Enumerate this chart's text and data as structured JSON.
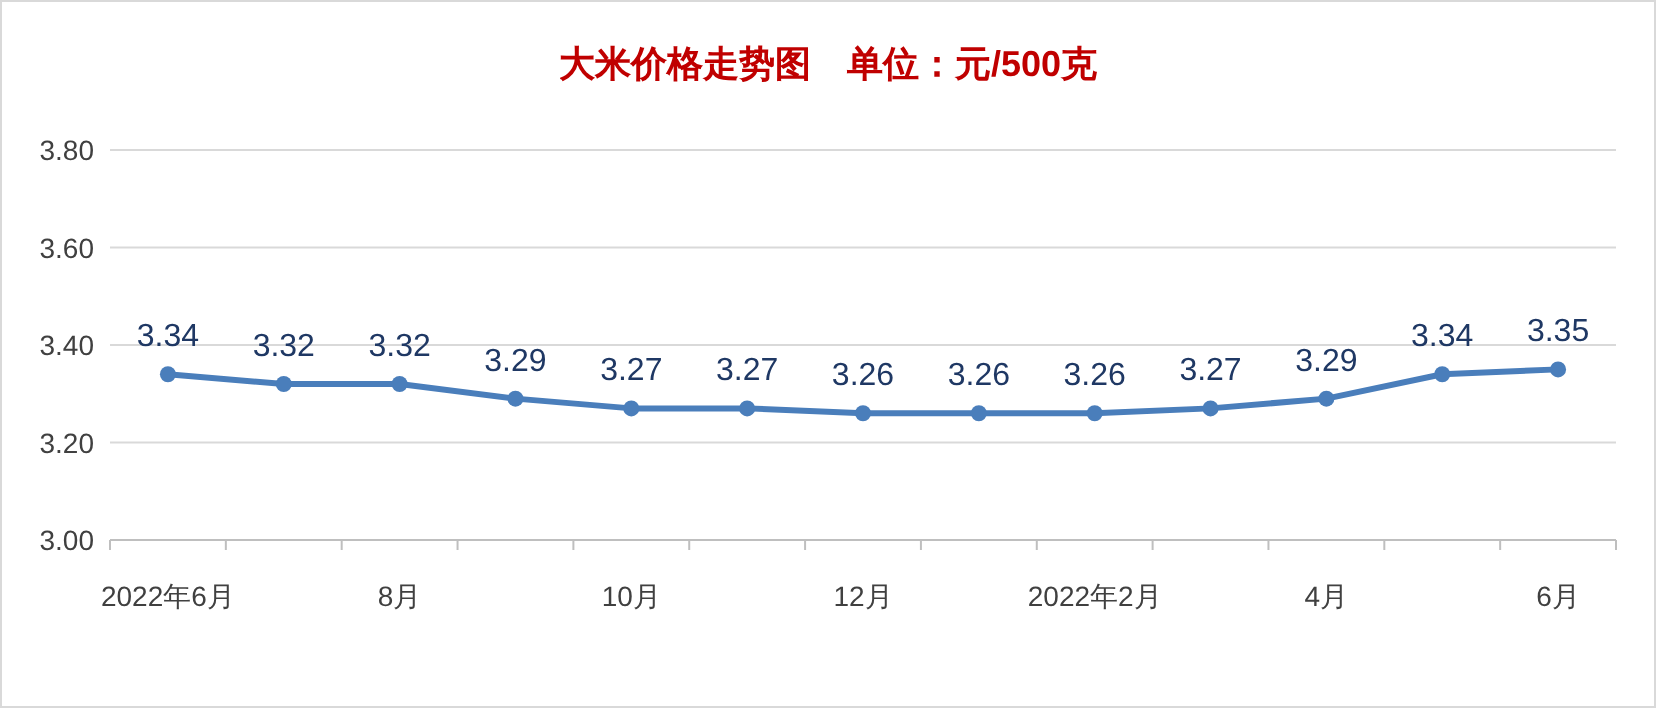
{
  "chart_data": {
    "type": "line",
    "title": "大米价格走势图　单位：元/500克",
    "categories": [
      "2022年6月",
      null,
      "8月",
      null,
      "10月",
      null,
      "12月",
      null,
      "2022年2月",
      null,
      "4月",
      null,
      "6月"
    ],
    "series": [
      {
        "color": "#4a7ebb",
        "values": [
          3.34,
          3.32,
          3.32,
          3.29,
          3.27,
          3.27,
          3.26,
          3.26,
          3.26,
          3.27,
          3.29,
          3.34,
          3.35
        ]
      }
    ],
    "ylim": [
      3.0,
      3.8
    ],
    "yticks": [
      {
        "value": 3.0,
        "label": "3.00"
      },
      {
        "value": 3.2,
        "label": "3.20"
      },
      {
        "value": 3.4,
        "label": "3.40"
      },
      {
        "value": 3.6,
        "label": "3.60"
      },
      {
        "value": 3.8,
        "label": "3.80"
      }
    ],
    "grid": "y",
    "data_labels": true,
    "marker": "circle",
    "line_style": "solid"
  }
}
